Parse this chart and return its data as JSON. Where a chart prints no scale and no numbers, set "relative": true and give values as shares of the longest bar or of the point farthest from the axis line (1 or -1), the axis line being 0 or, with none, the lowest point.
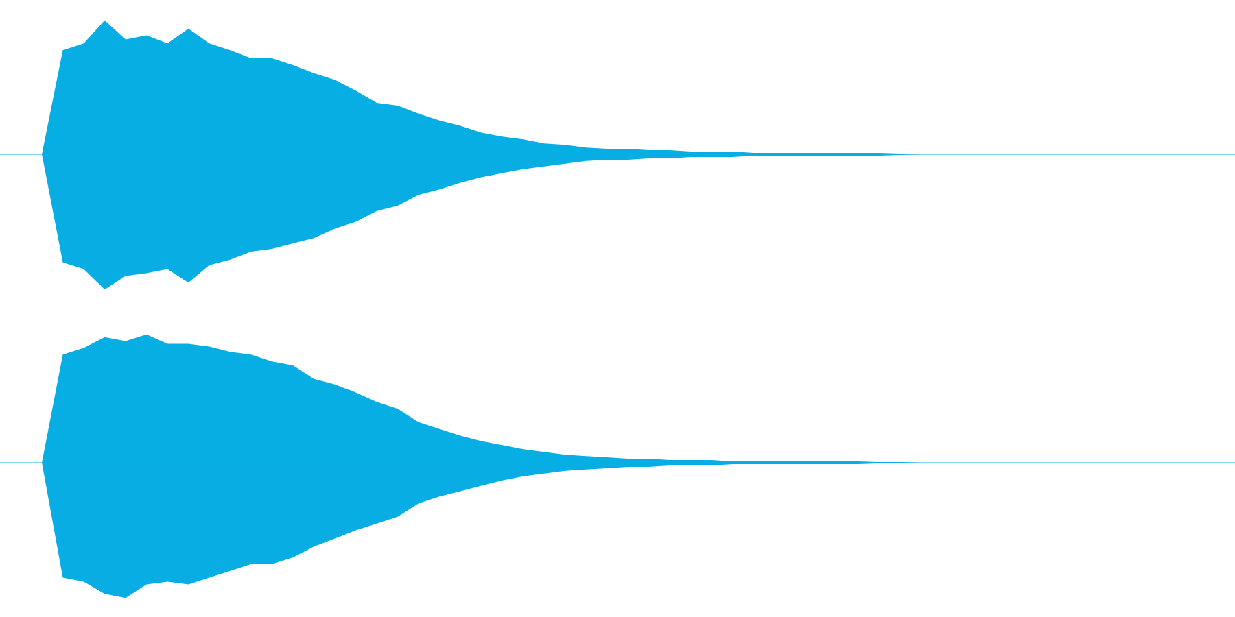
{
  "chart_data": [
    {
      "type": "area",
      "relative": true,
      "tick_labels": false,
      "categories": [
        null,
        null,
        null,
        null,
        null,
        null,
        null,
        null,
        null,
        null,
        null,
        null,
        null,
        null,
        null,
        null,
        null,
        null,
        null,
        null,
        null,
        null,
        null,
        null,
        null,
        null,
        null,
        null,
        null,
        null,
        null,
        null,
        null,
        null,
        null,
        null,
        null,
        null,
        null,
        null,
        null,
        null,
        null,
        null,
        null,
        null,
        null,
        null,
        null,
        null,
        null,
        null,
        null,
        null,
        null,
        null,
        null,
        null,
        null,
        null
      ],
      "series": [
        {
          "color": "#07aee4",
          "values": [
            0,
            0,
            0,
            0.77,
            0.82,
            0.99,
            0.85,
            0.88,
            0.82,
            0.93,
            0.82,
            0.77,
            0.71,
            0.71,
            0.66,
            0.6,
            0.55,
            0.47,
            0.38,
            0.36,
            0.3,
            0.25,
            0.21,
            0.16,
            0.13,
            0.11,
            0.08,
            0.07,
            0.05,
            0.04,
            0.04,
            0.03,
            0.03,
            0.02,
            0.02,
            0.02,
            0.01,
            0.01,
            0.01,
            0.01,
            0.01,
            0.01,
            0.01,
            0.005,
            0,
            0,
            0,
            0,
            0,
            0,
            0,
            0,
            0,
            0,
            0,
            0,
            0,
            0,
            0,
            0
          ]
        },
        {
          "color": "#08aee3",
          "values": [
            0,
            0,
            0,
            -0.8,
            -0.85,
            -1,
            -0.9,
            -0.88,
            -0.85,
            -0.95,
            -0.82,
            -0.78,
            -0.72,
            -0.7,
            -0.66,
            -0.62,
            -0.55,
            -0.5,
            -0.42,
            -0.38,
            -0.3,
            -0.26,
            -0.21,
            -0.17,
            -0.14,
            -0.11,
            -0.09,
            -0.07,
            -0.05,
            -0.04,
            -0.04,
            -0.03,
            -0.03,
            -0.02,
            -0.02,
            -0.02,
            -0.01,
            -0.01,
            -0.01,
            -0.01,
            -0.01,
            -0.01,
            -0.01,
            -0.005,
            0,
            0,
            0,
            0,
            0,
            0,
            0,
            0,
            0,
            0,
            0,
            0,
            0,
            0,
            0,
            0
          ]
        }
      ]
    },
    {
      "type": "area",
      "relative": true,
      "tick_labels": false,
      "categories": [
        null,
        null,
        null,
        null,
        null,
        null,
        null,
        null,
        null,
        null,
        null,
        null,
        null,
        null,
        null,
        null,
        null,
        null,
        null,
        null,
        null,
        null,
        null,
        null,
        null,
        null,
        null,
        null,
        null,
        null,
        null,
        null,
        null,
        null,
        null,
        null,
        null,
        null,
        null,
        null,
        null,
        null,
        null,
        null,
        null,
        null,
        null,
        null,
        null,
        null,
        null,
        null,
        null,
        null,
        null,
        null,
        null,
        null,
        null,
        null
      ],
      "series": [
        {
          "color": "#07aee4",
          "values": [
            0,
            0,
            0,
            0.8,
            0.85,
            0.93,
            0.9,
            0.95,
            0.88,
            0.88,
            0.86,
            0.82,
            0.8,
            0.75,
            0.72,
            0.62,
            0.58,
            0.52,
            0.45,
            0.4,
            0.3,
            0.25,
            0.2,
            0.16,
            0.13,
            0.1,
            0.08,
            0.06,
            0.05,
            0.04,
            0.03,
            0.03,
            0.02,
            0.02,
            0.02,
            0.01,
            0.01,
            0.01,
            0.01,
            0.01,
            0.01,
            0.01,
            0.005,
            0.005,
            0,
            0,
            0,
            0,
            0,
            0,
            0,
            0,
            0,
            0,
            0,
            0,
            0,
            0,
            0,
            0
          ]
        },
        {
          "color": "#08aee3",
          "values": [
            0,
            0,
            0,
            -0.85,
            -0.88,
            -0.97,
            -1,
            -0.9,
            -0.88,
            -0.9,
            -0.85,
            -0.8,
            -0.75,
            -0.75,
            -0.7,
            -0.62,
            -0.56,
            -0.5,
            -0.45,
            -0.4,
            -0.3,
            -0.25,
            -0.21,
            -0.17,
            -0.13,
            -0.1,
            -0.08,
            -0.06,
            -0.05,
            -0.04,
            -0.03,
            -0.03,
            -0.02,
            -0.02,
            -0.02,
            -0.01,
            -0.01,
            -0.01,
            -0.01,
            -0.01,
            -0.01,
            -0.01,
            -0.005,
            -0.005,
            0,
            0,
            0,
            0,
            0,
            0,
            0,
            0,
            0,
            0,
            0,
            0,
            0,
            0,
            0,
            0
          ]
        }
      ]
    }
  ]
}
